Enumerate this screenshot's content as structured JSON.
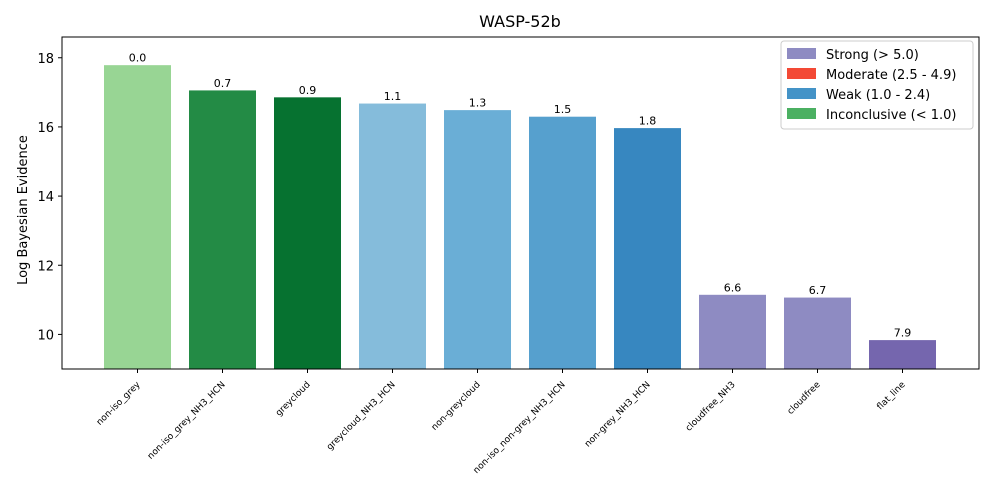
{
  "chart_data": {
    "type": "bar",
    "title": "WASP-52b",
    "xlabel": "",
    "ylabel": "Log Bayesian Evidence",
    "ylim": [
      9.0,
      18.6
    ],
    "yticks": [
      10,
      12,
      14,
      16,
      18
    ],
    "grid": false,
    "legend_position": "top-right",
    "categories": [
      "non-iso_grey",
      "non-iso_grey_NH3_HCN",
      "greycloud",
      "greycloud_NH3_HCN",
      "non-greycloud",
      "non-iso_non-grey_NH3_HCN",
      "non-grey_NH3_HCN",
      "cloudfree_NH3",
      "cloudfree",
      "flat_line"
    ],
    "values": [
      17.8,
      17.07,
      16.87,
      16.69,
      16.5,
      16.31,
      15.98,
      11.16,
      11.08,
      9.85
    ],
    "data_labels": [
      "0.0",
      "0.7",
      "0.9",
      "1.1",
      "1.3",
      "1.5",
      "1.8",
      "6.6",
      "6.7",
      "7.9"
    ],
    "bar_colors": [
      "#98d594",
      "#238b45",
      "#067230",
      "#85bcdb",
      "#6aaed6",
      "#56a0ce",
      "#3787c0",
      "#8e8bc2",
      "#8e8bc2",
      "#7566ae"
    ],
    "legend": [
      {
        "label": "Strong (> 5.0)",
        "color": "#8e8bc2"
      },
      {
        "label": "Moderate (2.5 - 4.9)",
        "color": "#f34935"
      },
      {
        "label": "Weak (1.0 - 2.4)",
        "color": "#4493c7"
      },
      {
        "label": "Inconclusive (< 1.0)",
        "color": "#4bb062"
      }
    ]
  }
}
